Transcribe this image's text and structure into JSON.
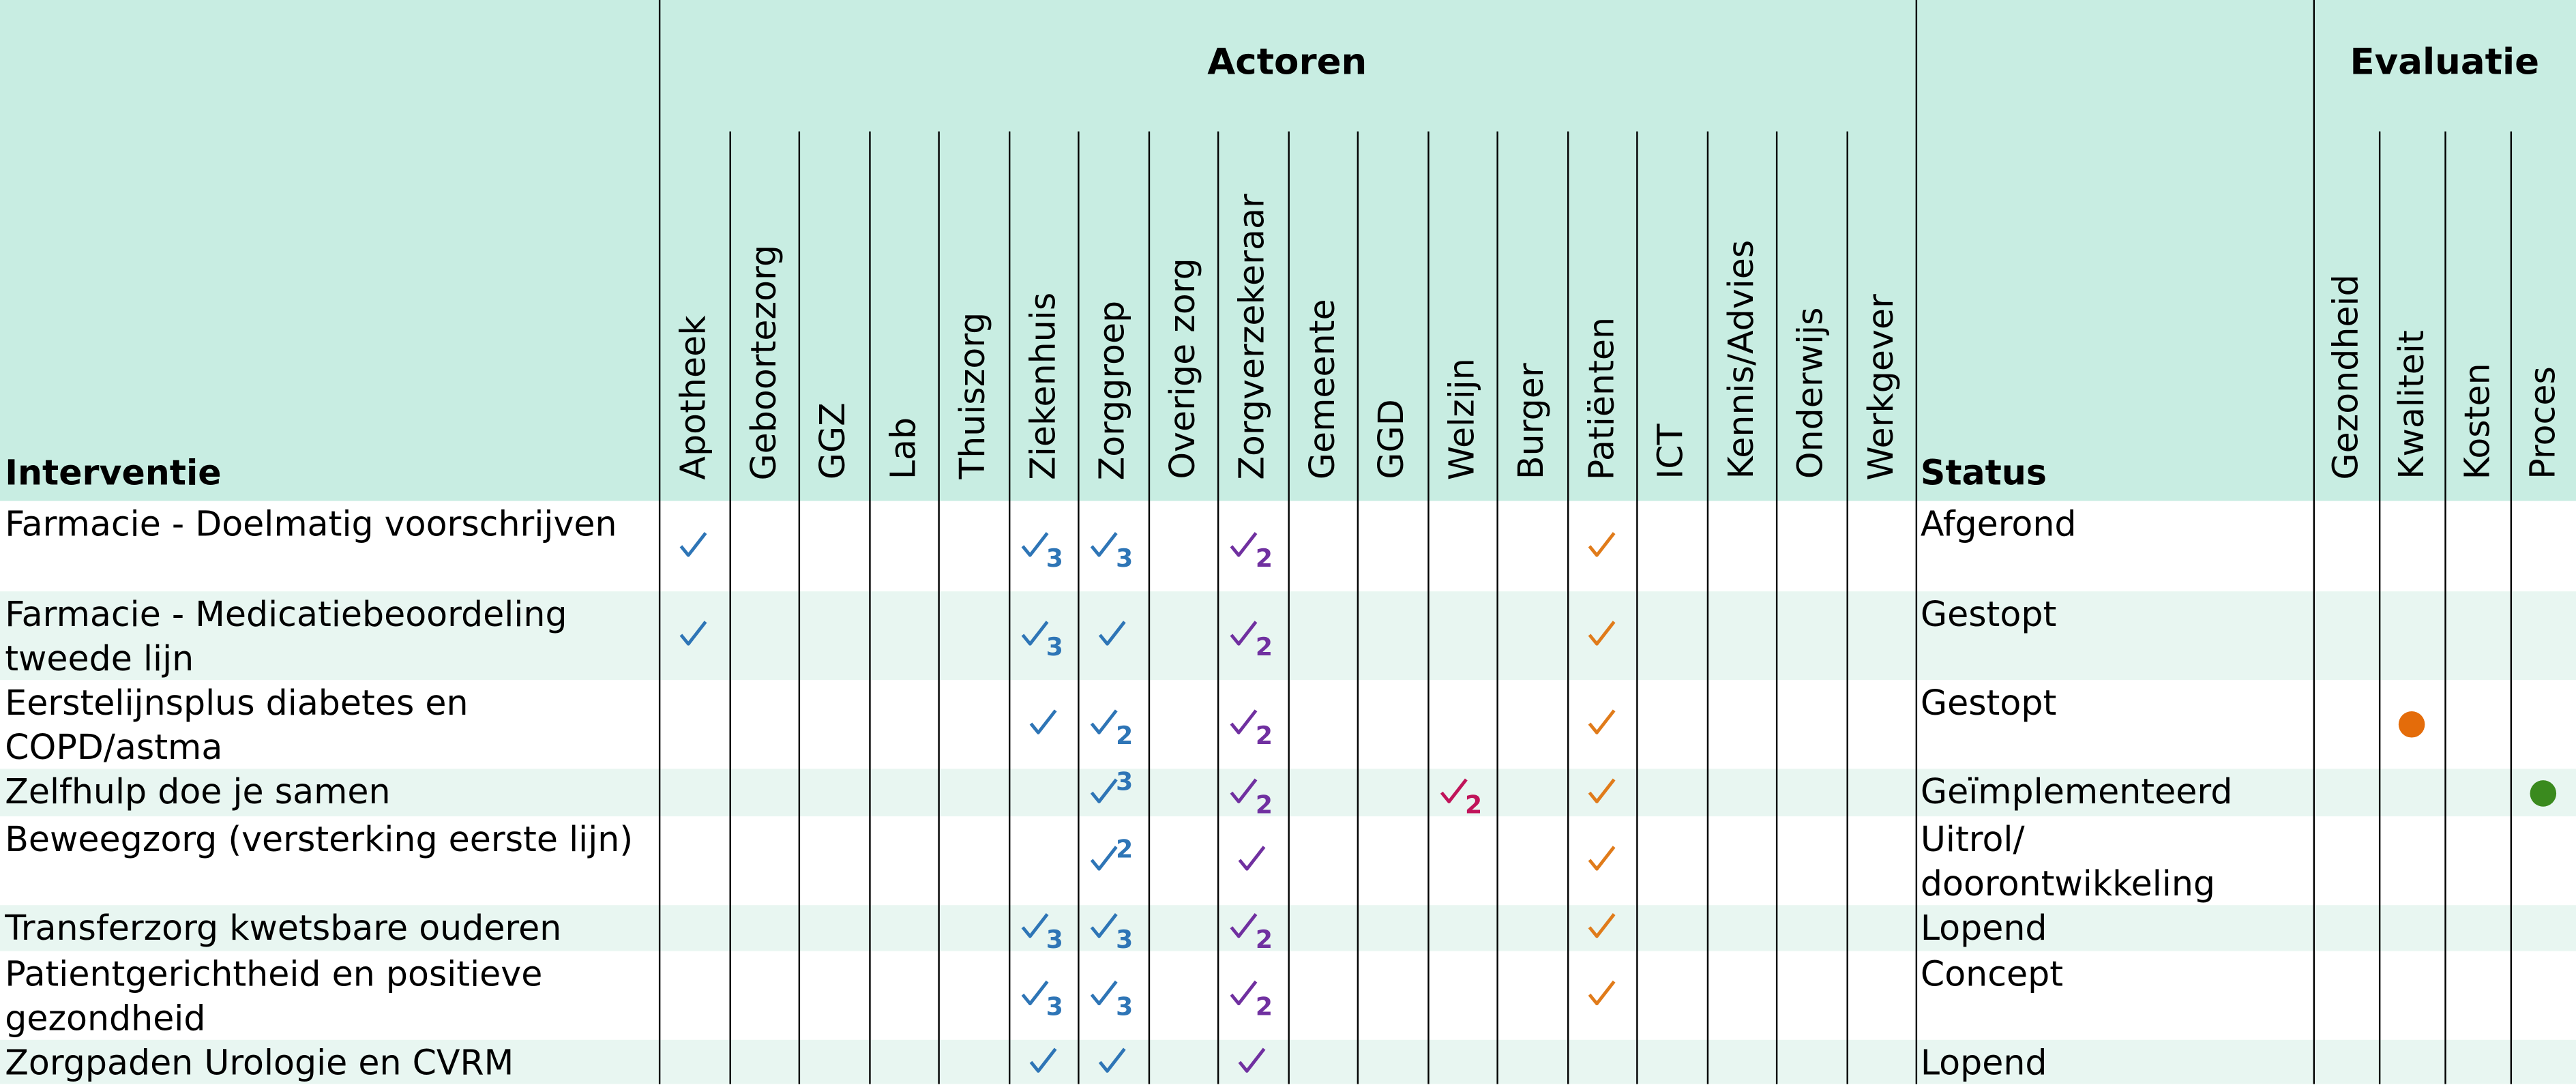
{
  "header": {
    "group_actoren": "Actoren",
    "group_evaluatie": "Evaluatie",
    "col_interventie": "Interventie",
    "col_status": "Status",
    "actors": [
      "Apotheek",
      "Geboortezorg",
      "GGZ",
      "Lab",
      "Thuiszorg",
      "Ziekenhuis",
      "Zorggroep",
      "Overige zorg",
      "Zorgverzekeraar",
      "Gemeente",
      "GGD",
      "Welzijn",
      "Burger",
      "Patiënten",
      "ICT",
      "Kennis/Advies",
      "Onderwijs",
      "Werkgever"
    ],
    "evaluatie": [
      "Gezondheid",
      "Kwaliteit",
      "Kosten",
      "Proces"
    ]
  },
  "rows": [
    {
      "interventie": "Farmacie - Doelmatig voorschrijven",
      "status": "Afgerond",
      "actors": [
        {
          "color": "#2e75b6"
        },
        null,
        null,
        null,
        null,
        {
          "color": "#2e75b6",
          "sub": "3"
        },
        {
          "color": "#2e75b6",
          "sub": "3"
        },
        null,
        {
          "color": "#7030a0",
          "sub": "2"
        },
        null,
        null,
        null,
        null,
        {
          "color": "#e07b1a"
        },
        null,
        null,
        null,
        null
      ],
      "evaluatie": [
        null,
        null,
        null,
        null
      ]
    },
    {
      "interventie": "Farmacie - Medicatiebeoordeling tweede lijn",
      "status": "Gestopt",
      "actors": [
        {
          "color": "#2e75b6"
        },
        null,
        null,
        null,
        null,
        {
          "color": "#2e75b6",
          "sub": "3"
        },
        {
          "color": "#2e75b6"
        },
        null,
        {
          "color": "#7030a0",
          "sub": "2"
        },
        null,
        null,
        null,
        null,
        {
          "color": "#e07b1a"
        },
        null,
        null,
        null,
        null
      ],
      "evaluatie": [
        null,
        null,
        null,
        null
      ]
    },
    {
      "interventie": "Eerstelijnsplus diabetes en COPD/astma",
      "status": "Gestopt",
      "actors": [
        null,
        null,
        null,
        null,
        null,
        {
          "color": "#2e75b6"
        },
        {
          "color": "#2e75b6",
          "sub": "2"
        },
        null,
        {
          "color": "#7030a0",
          "sub": "2"
        },
        null,
        null,
        null,
        null,
        {
          "color": "#e07b1a"
        },
        null,
        null,
        null,
        null
      ],
      "evaluatie": [
        null,
        {
          "dot": "#e46c0a"
        },
        null,
        null
      ]
    },
    {
      "interventie": "Zelfhulp doe je samen",
      "status": "Geïmplementeerd",
      "actors": [
        null,
        null,
        null,
        null,
        null,
        null,
        {
          "color": "#2e75b6",
          "sup": "3"
        },
        null,
        {
          "color": "#7030a0",
          "sub": "2"
        },
        null,
        null,
        {
          "color": "#c0145a",
          "sub": "2"
        },
        null,
        {
          "color": "#e07b1a"
        },
        null,
        null,
        null,
        null
      ],
      "evaluatie": [
        null,
        null,
        null,
        {
          "dot": "#3a8a1e"
        }
      ]
    },
    {
      "interventie": "Beweegzorg (versterking eerste lijn)",
      "status": "Uitrol/ doorontwikkeling",
      "actors": [
        null,
        null,
        null,
        null,
        null,
        null,
        {
          "color": "#2e75b6",
          "sup": "2"
        },
        null,
        {
          "color": "#7030a0"
        },
        null,
        null,
        null,
        null,
        {
          "color": "#e07b1a"
        },
        null,
        null,
        null,
        null
      ],
      "evaluatie": [
        null,
        null,
        null,
        null
      ]
    },
    {
      "interventie": "Transferzorg kwetsbare ouderen",
      "status": "Lopend",
      "actors": [
        null,
        null,
        null,
        null,
        null,
        {
          "color": "#2e75b6",
          "sub": "3"
        },
        {
          "color": "#2e75b6",
          "sub": "3"
        },
        null,
        {
          "color": "#7030a0",
          "sub": "2"
        },
        null,
        null,
        null,
        null,
        {
          "color": "#e07b1a"
        },
        null,
        null,
        null,
        null
      ],
      "evaluatie": [
        null,
        null,
        null,
        null
      ]
    },
    {
      "interventie": "Patientgerichtheid en positieve gezondheid",
      "status": "Concept",
      "actors": [
        null,
        null,
        null,
        null,
        null,
        {
          "color": "#2e75b6",
          "sub": "3"
        },
        {
          "color": "#2e75b6",
          "sub": "3"
        },
        null,
        {
          "color": "#7030a0",
          "sub": "2"
        },
        null,
        null,
        null,
        null,
        {
          "color": "#e07b1a"
        },
        null,
        null,
        null,
        null
      ],
      "evaluatie": [
        null,
        null,
        null,
        null
      ]
    },
    {
      "interventie": "Zorgpaden Urologie en CVRM",
      "status": "Lopend",
      "actors": [
        null,
        null,
        null,
        null,
        null,
        {
          "color": "#2e75b6"
        },
        {
          "color": "#2e75b6"
        },
        null,
        {
          "color": "#7030a0"
        },
        null,
        null,
        null,
        null,
        null,
        null,
        null,
        null,
        null
      ],
      "evaluatie": [
        null,
        null,
        null,
        null
      ]
    }
  ]
}
